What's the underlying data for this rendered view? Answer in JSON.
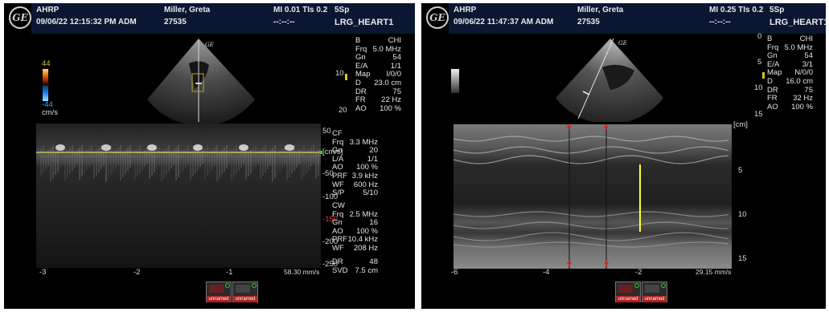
{
  "left": {
    "header": {
      "institution": "AHRP",
      "datetime": "09/06/22 12:15:32 PM ADM",
      "patient": "Miller, Greta",
      "patient_id": "27535",
      "mi_tis": "MI 0.01  TIs 0.2",
      "probe": "5Sp",
      "dashes": "--:--:--",
      "preset": "LRG_HEART1"
    },
    "logo": "GE",
    "color_scale": {
      "top": "44",
      "bottom": "-44",
      "unit": "cm/s"
    },
    "bmode_depth_ticks": [
      "10",
      "20"
    ],
    "bmode_params": [
      {
        "k": "B",
        "v": "CHI"
      },
      {
        "k": "Frq",
        "v": "5.0 MHz"
      },
      {
        "k": "Gn",
        "v": "54"
      },
      {
        "k": "E/A",
        "v": "1/1"
      },
      {
        "k": "Map",
        "v": "I/0/0"
      },
      {
        "k": "D",
        "v": "23.0 cm"
      },
      {
        "k": "DR",
        "v": "75"
      },
      {
        "k": "FR",
        "v": "22 Hz"
      },
      {
        "k": "AO",
        "v": "100 %"
      }
    ],
    "cf_params": [
      {
        "k": "CF",
        "v": ""
      },
      {
        "k": "Frq",
        "v": "3.3 MHz"
      },
      {
        "k": "Gn",
        "v": "20"
      },
      {
        "k": "L/A",
        "v": "1/1"
      },
      {
        "k": "AO",
        "v": "100 %"
      },
      {
        "k": "PRF",
        "v": "3.9 kHz"
      },
      {
        "k": "WF",
        "v": "600 Hz"
      },
      {
        "k": "S/P",
        "v": "5/10"
      }
    ],
    "cw_params": [
      {
        "k": "CW",
        "v": ""
      },
      {
        "k": "Frq",
        "v": "2.5 MHz"
      },
      {
        "k": "Gn",
        "v": "16"
      },
      {
        "k": "AO",
        "v": "100 %"
      },
      {
        "k": "PRF",
        "v": "10.4 kHz"
      },
      {
        "k": "WF",
        "v": "208 Hz"
      }
    ],
    "dr_params": [
      {
        "k": "DR",
        "v": "48"
      },
      {
        "k": "SVD",
        "v": "7.5 cm"
      }
    ],
    "velocity_ticks": [
      "50",
      "[cm/s]",
      "-50",
      "-100",
      "-150",
      "-200",
      "-250"
    ],
    "time_ticks": [
      "-3",
      "-2",
      "-1"
    ],
    "sweep_speed": "58.30 mm/s",
    "thumbnails": [
      "unnamed",
      "unnamed"
    ]
  },
  "right": {
    "header": {
      "institution": "AHRP",
      "datetime": "09/06/22 11:47:37 AM ADM",
      "patient": "Miller, Greta",
      "patient_id": "27535",
      "mi_tis": "MI 0.25  TIs 0.2",
      "probe": "5Sp",
      "dashes": "--:--:--",
      "preset": "LRG_HEART1"
    },
    "logo": "GE",
    "bmode_depth_ticks": [
      "0",
      "5",
      "10",
      "15"
    ],
    "bmode_params": [
      {
        "k": "B",
        "v": "CHI"
      },
      {
        "k": "Frq",
        "v": "5.0 MHz"
      },
      {
        "k": "Gn",
        "v": "54"
      },
      {
        "k": "E/A",
        "v": "3/1"
      },
      {
        "k": "Map",
        "v": "N/0/0"
      },
      {
        "k": "D",
        "v": "16.0 cm"
      },
      {
        "k": "DR",
        "v": "75"
      },
      {
        "k": "FR",
        "v": "32 Hz"
      },
      {
        "k": "AO",
        "v": "100 %"
      }
    ],
    "mmode_depth_ticks": [
      "[cm]",
      "5",
      "10",
      "15"
    ],
    "time_ticks": [
      "-6",
      "-4",
      "-2"
    ],
    "sweep_speed": "29.15 mm/s",
    "thumbnails": [
      "unnamed",
      "unnamed"
    ]
  },
  "colors": {
    "header_bg": "#0b1732",
    "baseline": "#c8c060",
    "caliper": "#ffff30",
    "marker": "#e02020",
    "negative_tick": "#d04040"
  }
}
